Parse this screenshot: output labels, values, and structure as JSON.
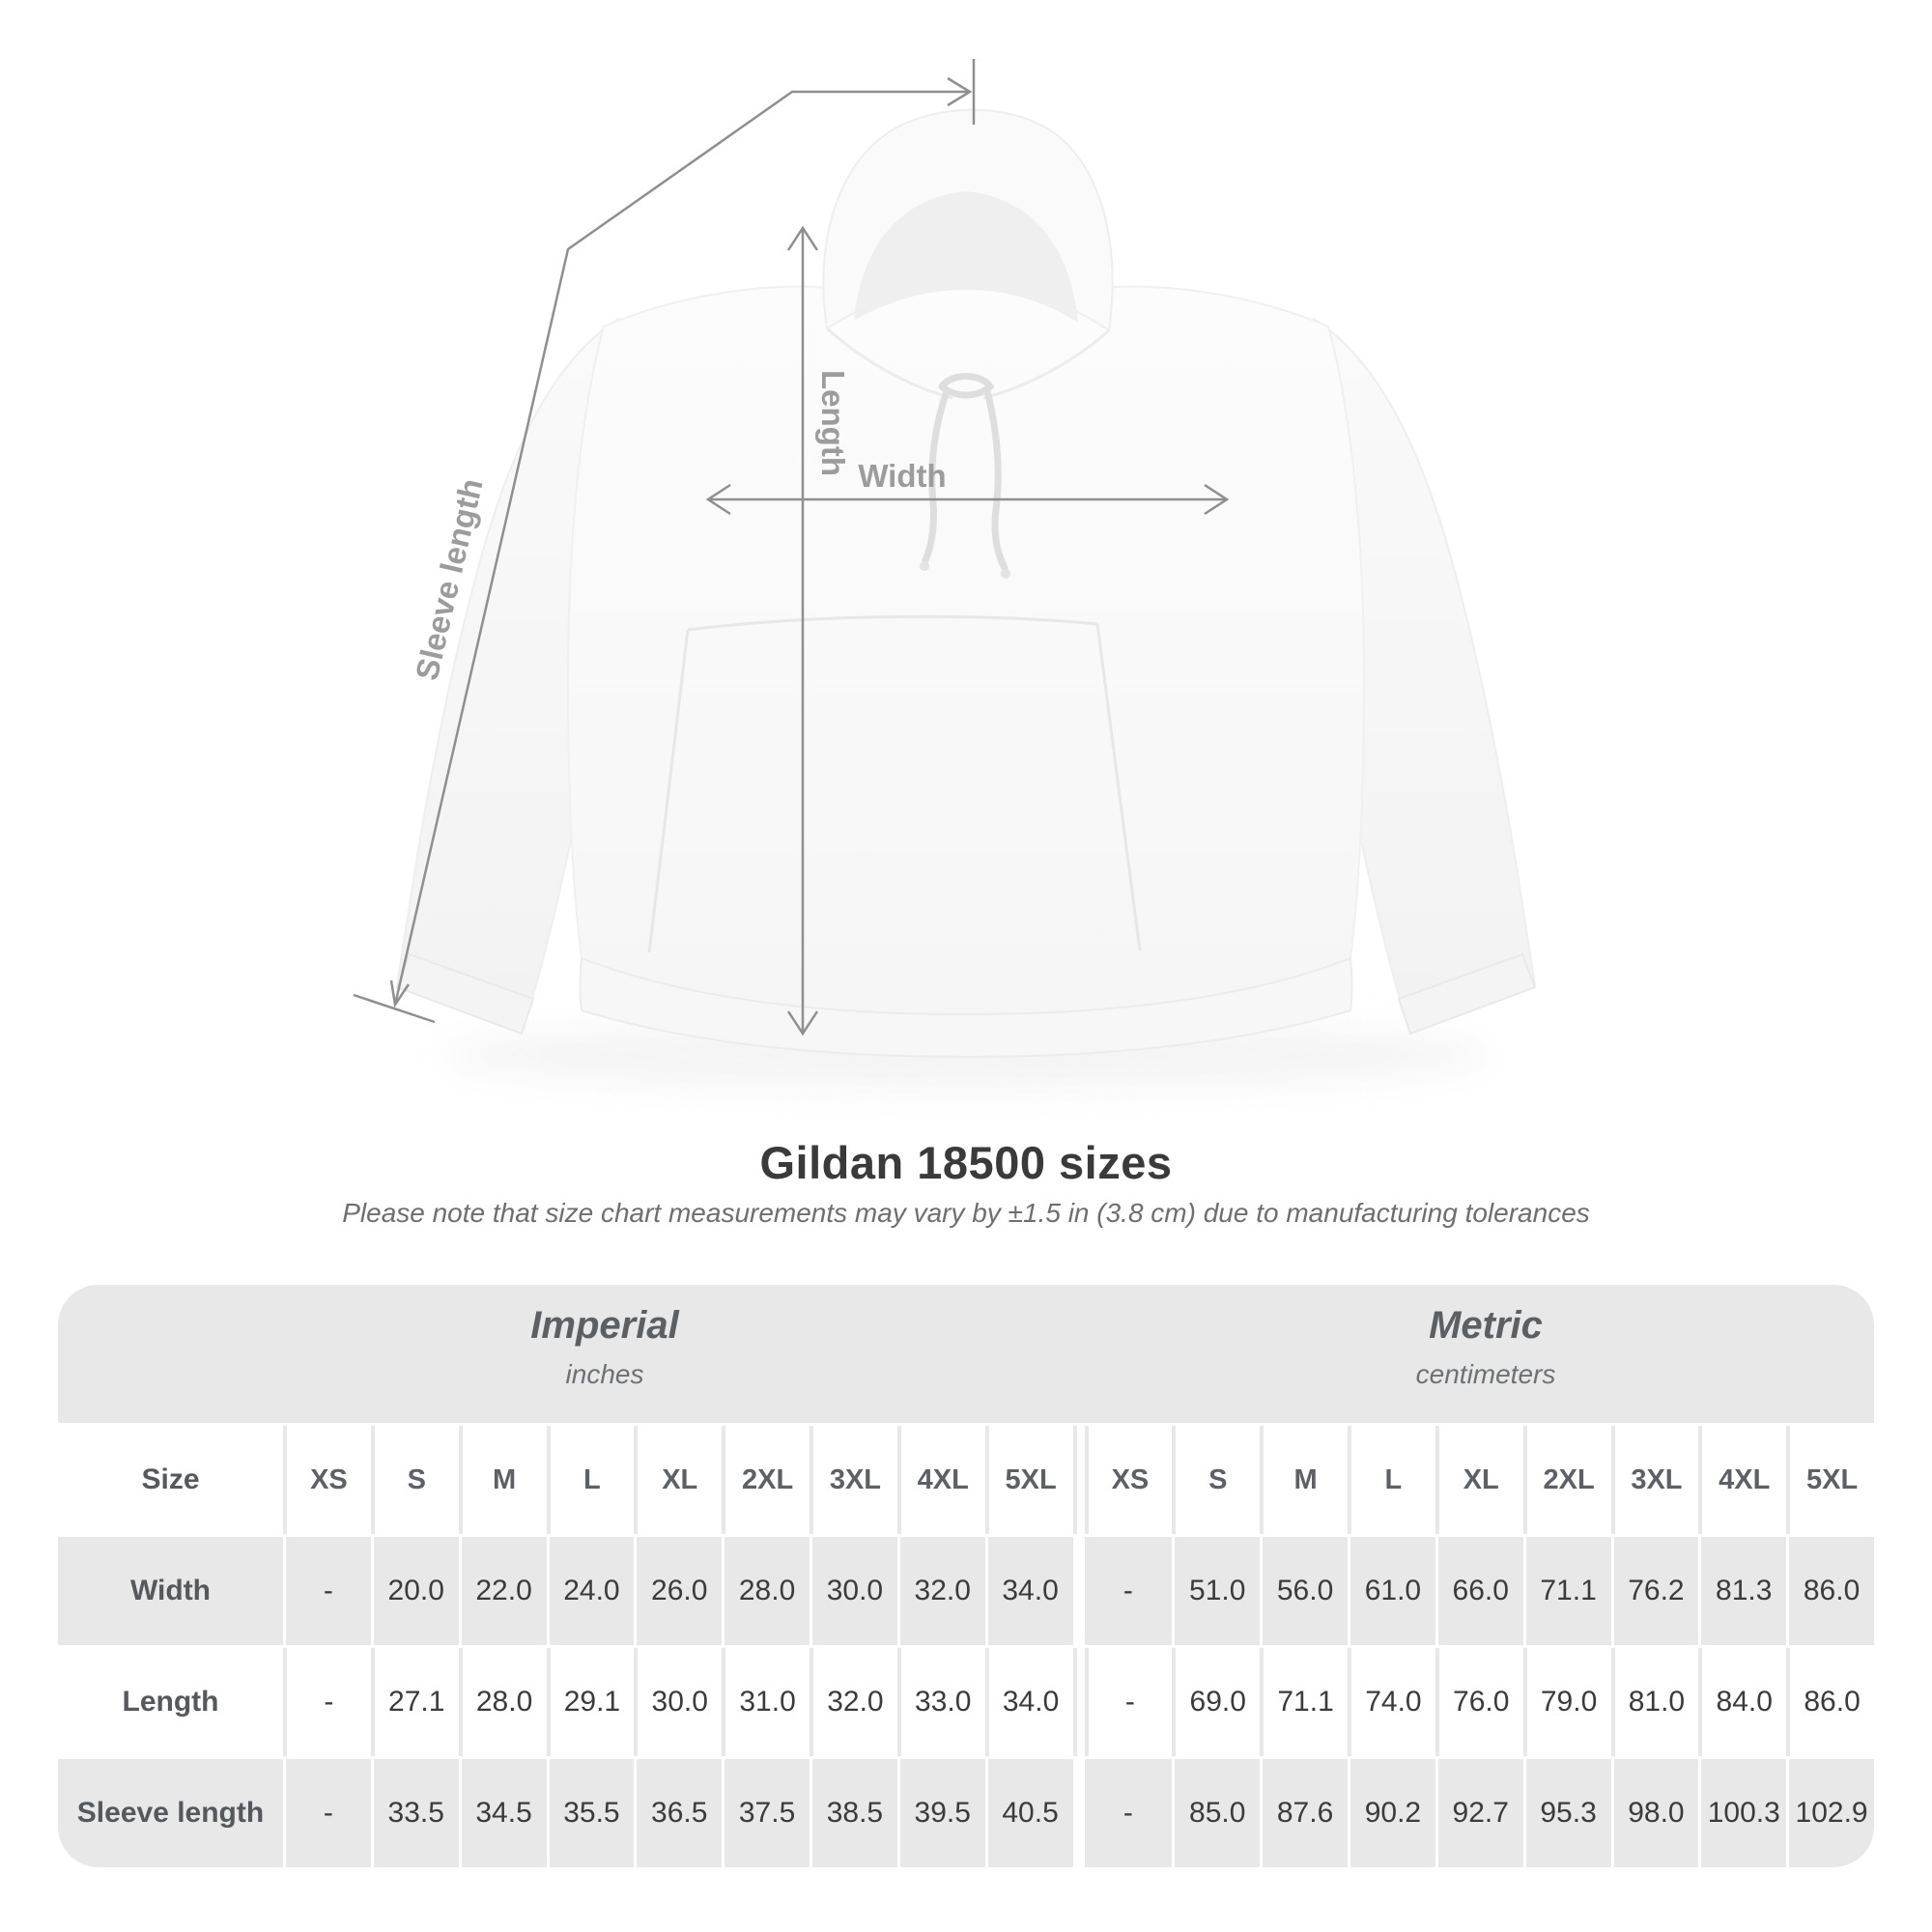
{
  "diagram": {
    "sleeve_label": "Sleeve length",
    "length_label": "Length",
    "width_label": "Width"
  },
  "heading": {
    "title": "Gildan 18500 sizes",
    "subtitle": "Please note that size chart measurements may vary by ±1.5 in (3.8 cm) due to manufacturing tolerances"
  },
  "table": {
    "unit_groups": [
      {
        "name": "Imperial",
        "unit": "inches"
      },
      {
        "name": "Metric",
        "unit": "centimeters"
      }
    ],
    "size_header": "Size",
    "sizes": [
      "XS",
      "S",
      "M",
      "L",
      "XL",
      "2XL",
      "3XL",
      "4XL",
      "5XL"
    ],
    "rows": [
      {
        "label": "Width",
        "imperial": [
          "-",
          "20.0",
          "22.0",
          "24.0",
          "26.0",
          "28.0",
          "30.0",
          "32.0",
          "34.0"
        ],
        "metric": [
          "-",
          "51.0",
          "56.0",
          "61.0",
          "66.0",
          "71.1",
          "76.2",
          "81.3",
          "86.0"
        ]
      },
      {
        "label": "Length",
        "imperial": [
          "-",
          "27.1",
          "28.0",
          "29.1",
          "30.0",
          "31.0",
          "32.0",
          "33.0",
          "34.0"
        ],
        "metric": [
          "-",
          "69.0",
          "71.1",
          "74.0",
          "76.0",
          "79.0",
          "81.0",
          "84.0",
          "86.0"
        ]
      },
      {
        "label": "Sleeve length",
        "imperial": [
          "-",
          "33.5",
          "34.5",
          "35.5",
          "36.5",
          "37.5",
          "38.5",
          "39.5",
          "40.5"
        ],
        "metric": [
          "-",
          "85.0",
          "87.6",
          "90.2",
          "92.7",
          "95.3",
          "98.0",
          "100.3",
          "102.9"
        ]
      }
    ]
  },
  "colors": {
    "band": "#e8e8e8",
    "data_text": "#3b3b3b",
    "header_text": "#5d6165",
    "title_text": "#3a3a3a",
    "subtitle_text": "#6e6e6e",
    "annotation_text": "#9c9c9c",
    "annotation_line": "#8f8f8f"
  }
}
